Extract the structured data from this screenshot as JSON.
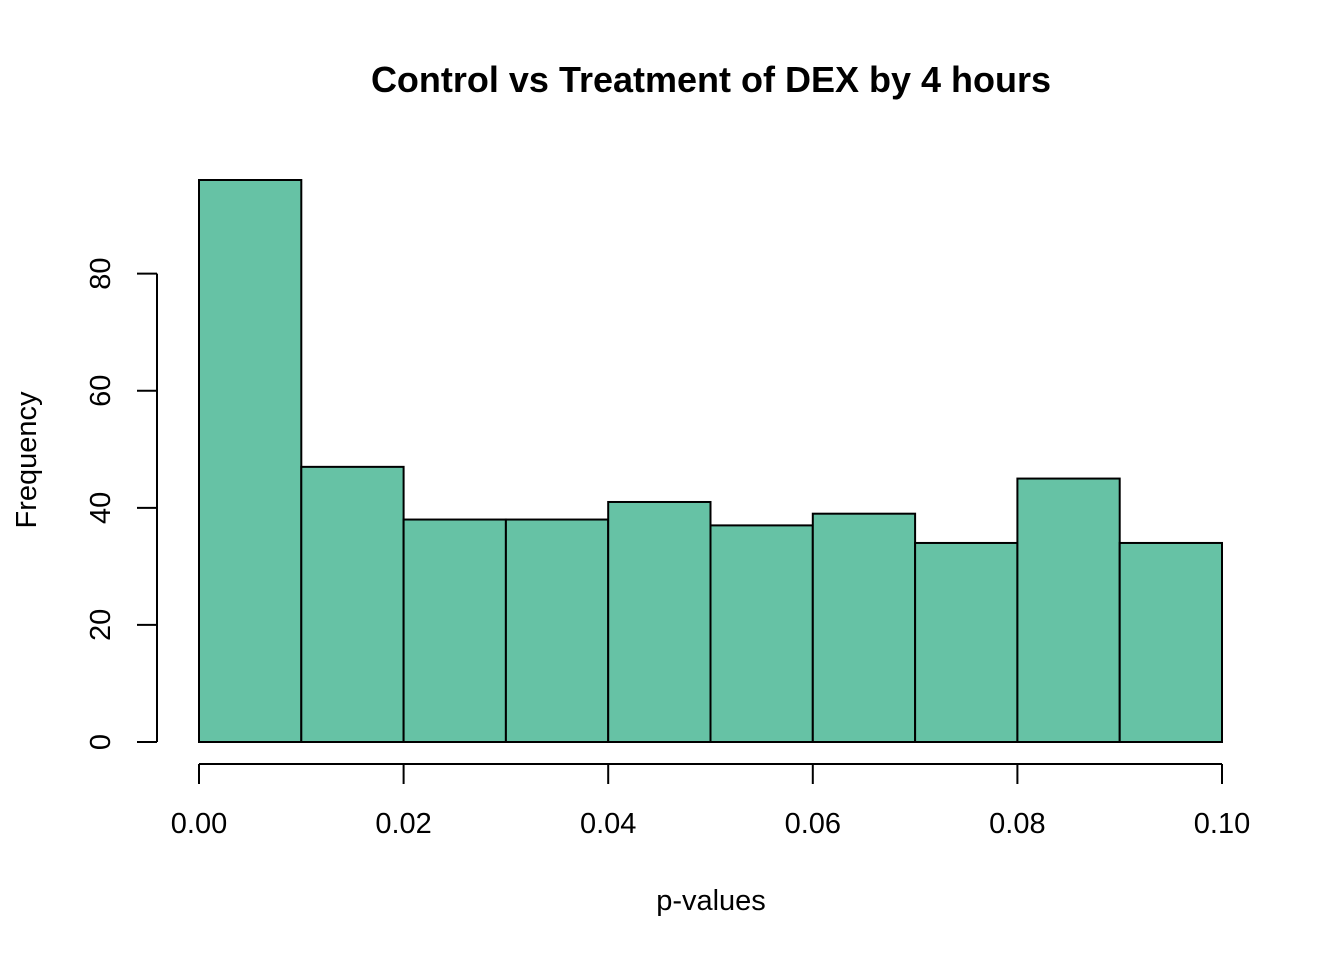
{
  "chart_data": {
    "type": "bar",
    "title": "Control vs Treatment of DEX by 4 hours",
    "xlabel": "p-values",
    "ylabel": "Frequency",
    "bin_edges": [
      0.0,
      0.01,
      0.02,
      0.03,
      0.04,
      0.05,
      0.06,
      0.07,
      0.08,
      0.09,
      0.1
    ],
    "values": [
      96,
      47,
      38,
      38,
      41,
      37,
      39,
      34,
      45,
      34
    ],
    "xlim": [
      0,
      0.1
    ],
    "ylim": [
      0,
      96
    ],
    "x_ticks": [
      0.0,
      0.02,
      0.04,
      0.06,
      0.08,
      0.1
    ],
    "x_tick_labels": [
      "0.00",
      "0.02",
      "0.04",
      "0.06",
      "0.08",
      "0.10"
    ],
    "y_ticks": [
      0,
      20,
      40,
      60,
      80
    ],
    "y_tick_labels": [
      "0",
      "20",
      "40",
      "60",
      "80"
    ],
    "bar_color": "#66c2a5",
    "edge_color": "#000000",
    "grid": false,
    "legend": "none"
  }
}
